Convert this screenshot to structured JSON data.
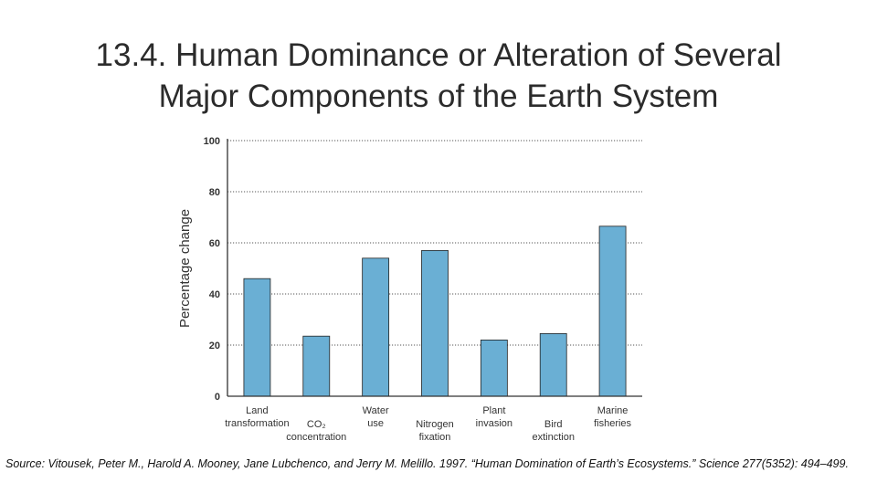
{
  "slide": {
    "title_line1": "13.4. Human Dominance or Alteration of Several",
    "title_line2": "Major Components of the Earth System",
    "source": "Source: Vitousek, Peter M., Harold A. Mooney, Jane Lubchenco, and Jerry M. Melillo. 1997. “Human Domination of Earth’s Ecosystems.” Science 277(5352): 494–499."
  },
  "chart_data": {
    "type": "bar",
    "ylabel": "Percentage change",
    "ylim": [
      0,
      100
    ],
    "yticks": [
      0,
      20,
      40,
      60,
      80,
      100
    ],
    "grid": "horizontal dotted",
    "bar_color": "#6aafd4",
    "categories": [
      [
        "Land",
        "transformation"
      ],
      [
        "CO₂",
        "concentration"
      ],
      [
        "Water",
        "use"
      ],
      [
        "Nitrogen",
        "fixation"
      ],
      [
        "Plant",
        "invasion"
      ],
      [
        "Bird",
        "extinction"
      ],
      [
        "Marine",
        "fisheries"
      ]
    ],
    "values": [
      46,
      23.5,
      54,
      57,
      22,
      24.5,
      66.5
    ]
  }
}
